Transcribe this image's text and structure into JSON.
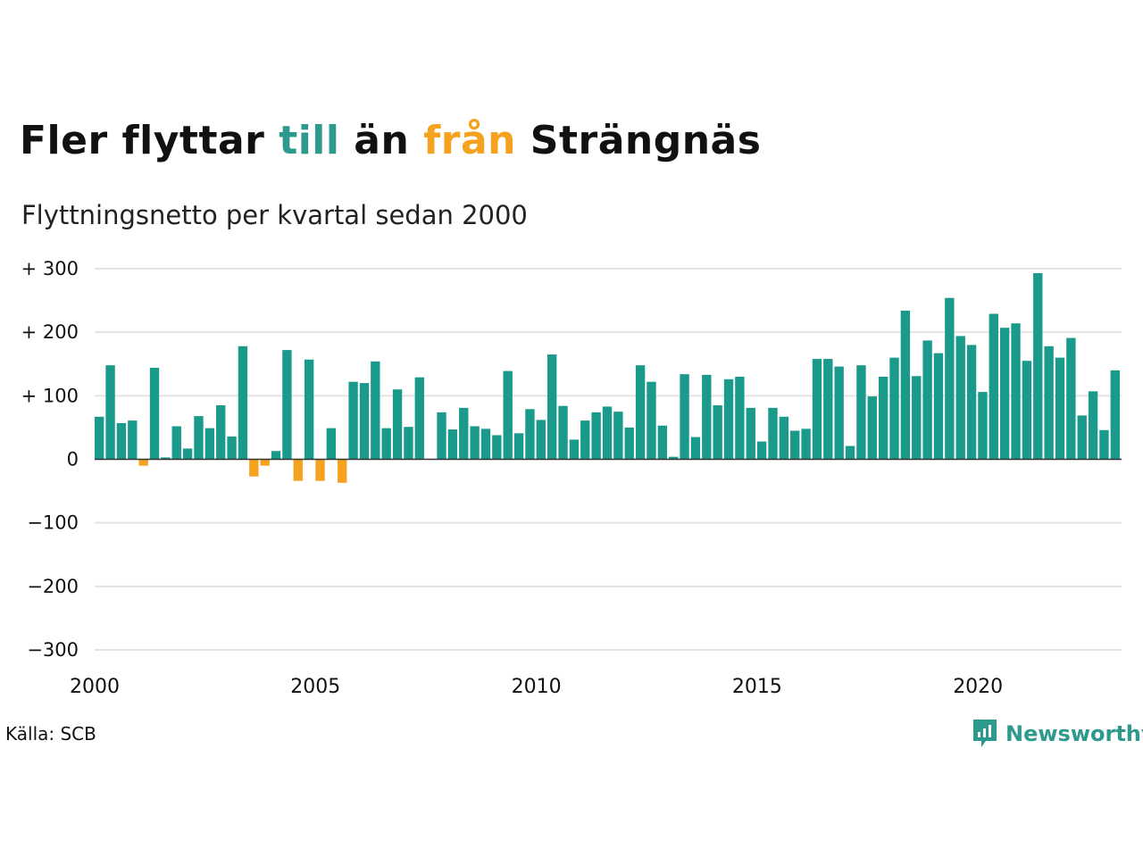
{
  "title": {
    "part1": "Fler flyttar ",
    "part2": "till",
    "part3": " än ",
    "part4": "från",
    "part5": " Strängnäs"
  },
  "subtitle": "Flyttningsnetto per kvartal sedan 2000",
  "source": "Källa: SCB",
  "logo": {
    "text": "Newsworthy",
    "icon": "newsworthy-chart-bubble-icon"
  },
  "colors": {
    "positive": "#1a9a8a",
    "negative": "#f5a21f",
    "grid": "#e3e3e3",
    "axis": "#333333"
  },
  "chart_data": {
    "type": "bar",
    "ylim": [
      -300,
      300
    ],
    "y_ticks": [
      300,
      200,
      100,
      0,
      -100,
      -200,
      -300
    ],
    "y_tick_labels": [
      "+ 300",
      "+ 200",
      "+ 100",
      "0",
      "−100",
      "−200",
      "−300"
    ],
    "x_tick_labels": [
      "2000",
      "2005",
      "2010",
      "2015",
      "2020"
    ],
    "x_start": "2000 Q1",
    "grid": true,
    "series": [
      {
        "values": [
          67,
          148,
          57,
          61,
          -10,
          144,
          3,
          52,
          17,
          68,
          49,
          85,
          36,
          178,
          -27,
          -10,
          13,
          172,
          -34,
          157,
          -34,
          49,
          -37,
          122,
          120,
          154,
          49,
          110,
          51,
          129,
          0,
          74,
          47,
          81,
          52,
          48,
          38,
          139,
          41,
          79,
          62,
          165,
          84,
          31,
          61,
          74,
          83,
          75,
          50,
          148,
          122,
          53,
          4,
          134,
          35,
          133,
          85,
          126,
          130,
          81,
          28,
          81,
          67,
          45,
          48,
          158,
          158,
          146,
          21,
          148,
          99,
          130,
          160,
          234,
          131,
          187,
          167,
          254,
          194,
          180,
          106,
          229,
          207,
          214,
          155,
          293,
          178,
          160,
          191,
          69,
          107,
          46,
          140
        ]
      }
    ]
  }
}
